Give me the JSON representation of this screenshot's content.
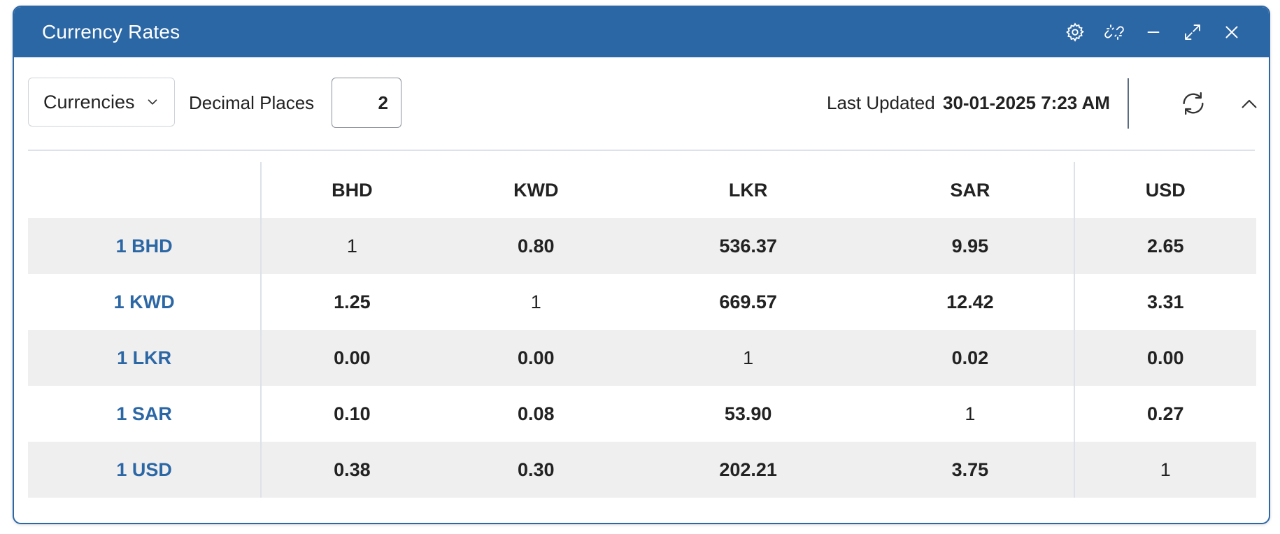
{
  "window": {
    "title": "Currency Rates",
    "accent_color": "#2c67a5",
    "title_icons": [
      "gear-icon",
      "unlink-icon",
      "minimize-icon",
      "expand-icon",
      "close-icon"
    ]
  },
  "toolbar": {
    "currencies_dropdown": {
      "label": "Currencies"
    },
    "decimal_places": {
      "label": "Decimal Places",
      "value": "2"
    },
    "last_updated": {
      "label": "Last Updated",
      "value": "30-01-2025 7:23 AM"
    }
  },
  "table": {
    "columns": [
      "BHD",
      "KWD",
      "LKR",
      "SAR",
      "USD"
    ],
    "rows": [
      {
        "label": "1 BHD",
        "values": [
          "1",
          "0.80",
          "536.37",
          "9.95",
          "2.65"
        ]
      },
      {
        "label": "1 KWD",
        "values": [
          "1.25",
          "1",
          "669.57",
          "12.42",
          "3.31"
        ]
      },
      {
        "label": "1 LKR",
        "values": [
          "0.00",
          "0.00",
          "1",
          "0.02",
          "0.00"
        ]
      },
      {
        "label": "1 SAR",
        "values": [
          "0.10",
          "0.08",
          "53.90",
          "1",
          "0.27"
        ]
      },
      {
        "label": "1 USD",
        "values": [
          "0.38",
          "0.30",
          "202.21",
          "3.75",
          "1"
        ]
      }
    ]
  }
}
